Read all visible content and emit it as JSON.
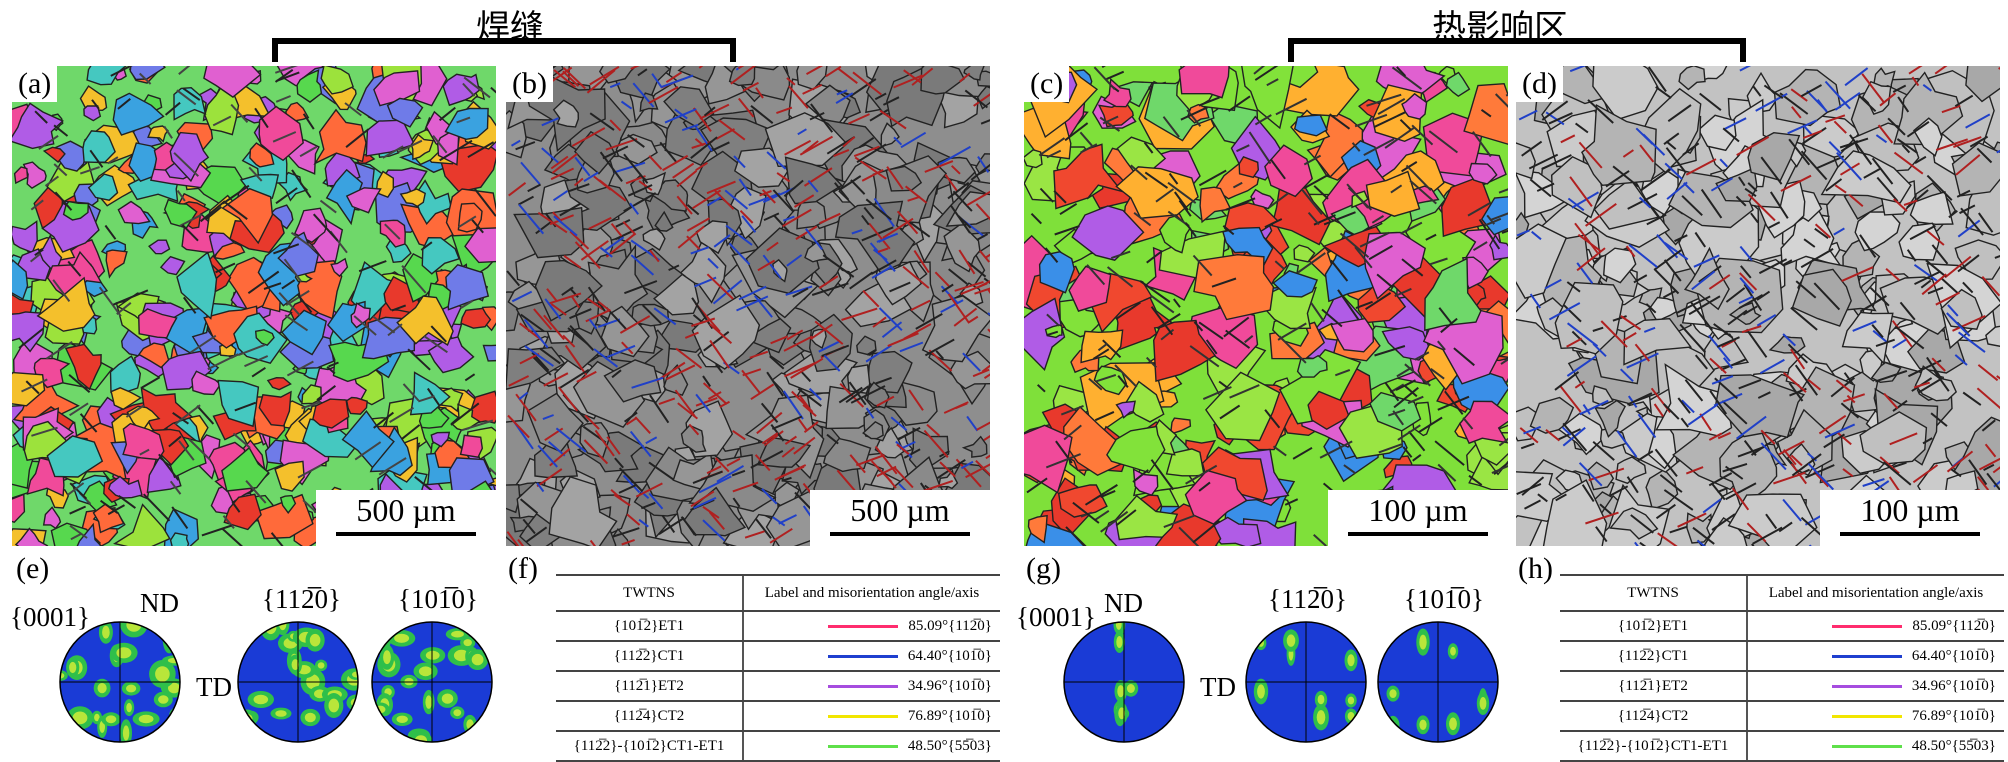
{
  "groups": [
    {
      "title": "焊缝"
    },
    {
      "title": "热影响区"
    }
  ],
  "panels": [
    {
      "label": "(a)",
      "scale": "500 µm",
      "kind": "ipf"
    },
    {
      "label": "(b)",
      "scale": "500 µm",
      "kind": "boundary"
    },
    {
      "label": "(c)",
      "scale": "100 µm",
      "kind": "ipf"
    },
    {
      "label": "(d)",
      "scale": "100 µm",
      "kind": "boundary"
    }
  ],
  "pole_figure_sets": [
    {
      "label": "(e)",
      "family": "{0001}",
      "nd": "ND",
      "td": "TD",
      "planes": [
        "{0001}",
        "{11̅2̅0}",
        "{10̅1̅0}"
      ],
      "titles": [
        "ND",
        "{112̅0}",
        "{101̅0}"
      ]
    },
    {
      "label": "(g)",
      "family": "{0001}",
      "nd": "ND",
      "td": "TD",
      "planes": [
        "{0001}",
        "{112̅0}",
        "{101̅0}"
      ],
      "titles": [
        "ND",
        "{112̅0}",
        "{101̅0}"
      ]
    }
  ],
  "twin_tables": [
    {
      "label": "(f)"
    },
    {
      "label": "(h)"
    }
  ],
  "table": {
    "header": [
      "TWTNS",
      "Label and misorientation angle/axis"
    ],
    "rows": [
      {
        "type": "{101̅2}ET1",
        "angle": "85.09°{112̅0}",
        "color": "#ff2d6e"
      },
      {
        "type": "{112̅2}CT1",
        "angle": "64.40°{101̅0}",
        "color": "#1f3fcf"
      },
      {
        "type": "{112̅1}ET2",
        "angle": "34.96°{101̅0}",
        "color": "#a64ddf"
      },
      {
        "type": "{112̅4}CT2",
        "angle": "76.89°{101̅0}",
        "color": "#f2e600"
      },
      {
        "type": "{112̅2}-{101̅2}CT1-ET1",
        "angle": "48.50°{55̅03}",
        "color": "#5fe04a"
      }
    ]
  }
}
